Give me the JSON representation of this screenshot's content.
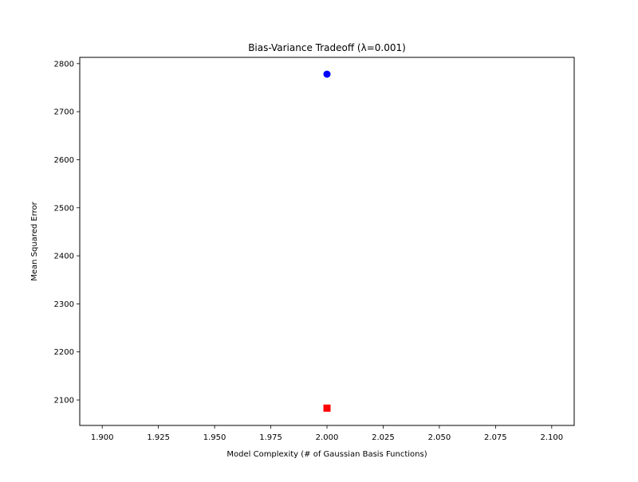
{
  "chart_data": {
    "type": "scatter",
    "title": "Bias-Variance Tradeoff (λ=0.001)",
    "xlabel": "Model Complexity (# of Gaussian Basis Functions)",
    "ylabel": "Mean Squared Error",
    "xlim": [
      1.89,
      2.11
    ],
    "ylim": [
      2047,
      2813
    ],
    "xticks": [
      1.9,
      1.925,
      1.95,
      1.975,
      2.0,
      2.025,
      2.05,
      2.075,
      2.1
    ],
    "xtick_labels": [
      "1.900",
      "1.925",
      "1.950",
      "1.975",
      "2.000",
      "2.025",
      "2.050",
      "2.075",
      "2.100"
    ],
    "yticks": [
      2100,
      2200,
      2300,
      2400,
      2500,
      2600,
      2700,
      2800
    ],
    "ytick_labels": [
      "2100",
      "2200",
      "2300",
      "2400",
      "2500",
      "2600",
      "2700",
      "2800"
    ],
    "grid": false,
    "series": [
      {
        "marker": "circle",
        "color": "#0000ff",
        "points": [
          {
            "x": 2.0,
            "y": 2778
          }
        ]
      },
      {
        "marker": "square",
        "color": "#ff0000",
        "points": [
          {
            "x": 2.0,
            "y": 2083
          }
        ]
      }
    ]
  }
}
